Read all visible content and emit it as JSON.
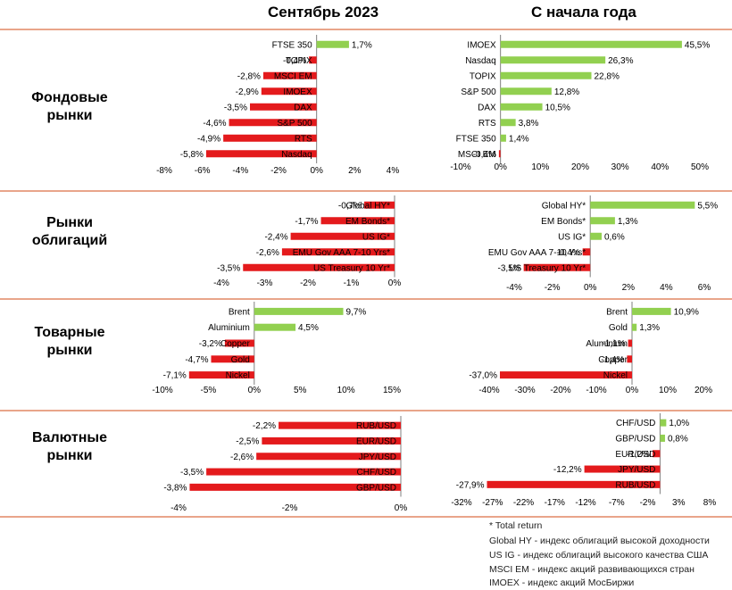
{
  "headers": {
    "left": "Сентябрь 2023",
    "right": "С начала года"
  },
  "section_labels": [
    [
      "Фондовые",
      "рынки"
    ],
    [
      "Рынки",
      "облигаций"
    ],
    [
      "Товарные",
      "рынки"
    ],
    [
      "Валютные",
      "рынки"
    ]
  ],
  "footnotes": [
    "* Total return",
    "Global HY - индекс облигаций высокой доходности",
    "US IG - индекс облигаций высокого качества США",
    "MSCI EM - индекс акций развивающихся стран",
    "IMOEX - индекс акций МосБиржи"
  ],
  "colors": {
    "positive": "#92d050",
    "negative": "#e41a1c",
    "divider": "#e9a58a",
    "axis": "#7f7f7f"
  },
  "chart_data": [
    {
      "type": "bar",
      "orientation": "horizontal",
      "section": "Фондовые рынки",
      "period": "Сентябрь 2023",
      "categories": [
        "FTSE 350",
        "TOPIX",
        "MSCI EM",
        "IMOEX",
        "DAX",
        "S&P 500",
        "RTS",
        "Nasdaq"
      ],
      "values": [
        1.7,
        -0.4,
        -2.8,
        -2.9,
        -3.5,
        -4.6,
        -4.9,
        -5.8
      ],
      "labels": [
        "1,7%",
        "-0,4%",
        "-2,8%",
        "-2,9%",
        "-3,5%",
        "-4,6%",
        "-4,9%",
        "-5,8%"
      ],
      "xlim": [
        -8,
        4
      ],
      "ticks": [
        -8,
        -6,
        -4,
        -2,
        0,
        2,
        4
      ],
      "tick_labels": [
        "-8%",
        "-6%",
        "-4%",
        "-2%",
        "0%",
        "2%",
        "4%"
      ]
    },
    {
      "type": "bar",
      "orientation": "horizontal",
      "section": "Фондовые рынки",
      "period": "С начала года",
      "categories": [
        "IMOEX",
        "Nasdaq",
        "TOPIX",
        "S&P 500",
        "DAX",
        "RTS",
        "FTSE 350",
        "MSCI EM"
      ],
      "values": [
        45.5,
        26.3,
        22.8,
        12.8,
        10.5,
        3.8,
        1.4,
        -0.4
      ],
      "labels": [
        "45,5%",
        "26,3%",
        "22,8%",
        "12,8%",
        "10,5%",
        "3,8%",
        "1,4%",
        "-0,4%"
      ],
      "xlim": [
        -10,
        50
      ],
      "ticks": [
        -10,
        0,
        10,
        20,
        30,
        40,
        50
      ],
      "tick_labels": [
        "-10%",
        "0%",
        "10%",
        "20%",
        "30%",
        "40%",
        "50%"
      ]
    },
    {
      "type": "bar",
      "orientation": "horizontal",
      "section": "Рынки облигаций",
      "period": "Сентябрь 2023",
      "categories": [
        "Global HY*",
        "EM Bonds*",
        "US IG*",
        "EMU Gov AAA 7-10 Yrs*",
        "US Treasury 10 Yr*"
      ],
      "values": [
        -0.7,
        -1.7,
        -2.4,
        -2.6,
        -3.5
      ],
      "labels": [
        "-0,7%",
        "-1,7%",
        "-2,4%",
        "-2,6%",
        "-3,5%"
      ],
      "xlim": [
        -4,
        0
      ],
      "ticks": [
        -4,
        -3,
        -2,
        -1,
        0
      ],
      "tick_labels": [
        "-4%",
        "-3%",
        "-2%",
        "-1%",
        "0%"
      ]
    },
    {
      "type": "bar",
      "orientation": "horizontal",
      "section": "Рынки облигаций",
      "period": "С начала года",
      "categories": [
        "Global HY*",
        "EM Bonds*",
        "US IG*",
        "EMU Gov AAA 7-10 Yrs*",
        "US Treasury 10 Yr*"
      ],
      "values": [
        5.5,
        1.3,
        0.6,
        -0.4,
        -3.5
      ],
      "labels": [
        "5,5%",
        "1,3%",
        "0,6%",
        "-0,4%",
        "-3,5%"
      ],
      "xlim": [
        -4,
        6
      ],
      "ticks": [
        -4,
        -2,
        0,
        2,
        4,
        6
      ],
      "tick_labels": [
        "-4%",
        "-2%",
        "0%",
        "2%",
        "4%",
        "6%"
      ]
    },
    {
      "type": "bar",
      "orientation": "horizontal",
      "section": "Товарные рынки",
      "period": "Сентябрь 2023",
      "categories": [
        "Brent",
        "Aluminium",
        "Copper",
        "Gold",
        "Nickel"
      ],
      "values": [
        9.7,
        4.5,
        -3.2,
        -4.7,
        -7.1
      ],
      "labels": [
        "9,7%",
        "4,5%",
        "-3,2%",
        "-4,7%",
        "-7,1%"
      ],
      "xlim": [
        -10,
        15
      ],
      "ticks": [
        -10,
        -5,
        0,
        5,
        10,
        15
      ],
      "tick_labels": [
        "-10%",
        "-5%",
        "0%",
        "5%",
        "10%",
        "15%"
      ]
    },
    {
      "type": "bar",
      "orientation": "horizontal",
      "section": "Товарные рынки",
      "period": "С начала года",
      "categories": [
        "Brent",
        "Gold",
        "Aluminium",
        "Copper",
        "Nickel"
      ],
      "values": [
        10.9,
        1.3,
        -1.1,
        -1.4,
        -37.0
      ],
      "labels": [
        "10,9%",
        "1,3%",
        "-1,1%",
        "-1,4%",
        "-37,0%"
      ],
      "xlim": [
        -40,
        20
      ],
      "ticks": [
        -40,
        -30,
        -20,
        -10,
        0,
        10,
        20
      ],
      "tick_labels": [
        "-40%",
        "-30%",
        "-20%",
        "-10%",
        "0%",
        "10%",
        "20%"
      ]
    },
    {
      "type": "bar",
      "orientation": "horizontal",
      "section": "Валютные рынки",
      "period": "Сентябрь 2023",
      "categories": [
        "RUB/USD",
        "EUR/USD",
        "JPY/USD",
        "CHF/USD",
        "GBP/USD"
      ],
      "values": [
        -2.2,
        -2.5,
        -2.6,
        -3.5,
        -3.8
      ],
      "labels": [
        "-2,2%",
        "-2,5%",
        "-2,6%",
        "-3,5%",
        "-3,8%"
      ],
      "xlim": [
        -4,
        0
      ],
      "ticks": [
        -4,
        -2,
        0
      ],
      "tick_labels": [
        "-4%",
        "-2%",
        "0%"
      ]
    },
    {
      "type": "bar",
      "orientation": "horizontal",
      "section": "Валютные рынки",
      "period": "С начала года",
      "categories": [
        "CHF/USD",
        "GBP/USD",
        "EUR/USD",
        "JPY/USD",
        "RUB/USD"
      ],
      "values": [
        1.0,
        0.8,
        -1.2,
        -12.2,
        -27.9
      ],
      "labels": [
        "1,0%",
        "0,8%",
        "-1,2%",
        "-12,2%",
        "-27,9%"
      ],
      "xlim": [
        -32,
        8
      ],
      "ticks": [
        -32,
        -27,
        -22,
        -17,
        -12,
        -7,
        -2,
        3,
        8
      ],
      "tick_labels": [
        "-32%",
        "-27%",
        "-22%",
        "-17%",
        "-12%",
        "-7%",
        "-2%",
        "3%",
        "8%"
      ]
    }
  ]
}
